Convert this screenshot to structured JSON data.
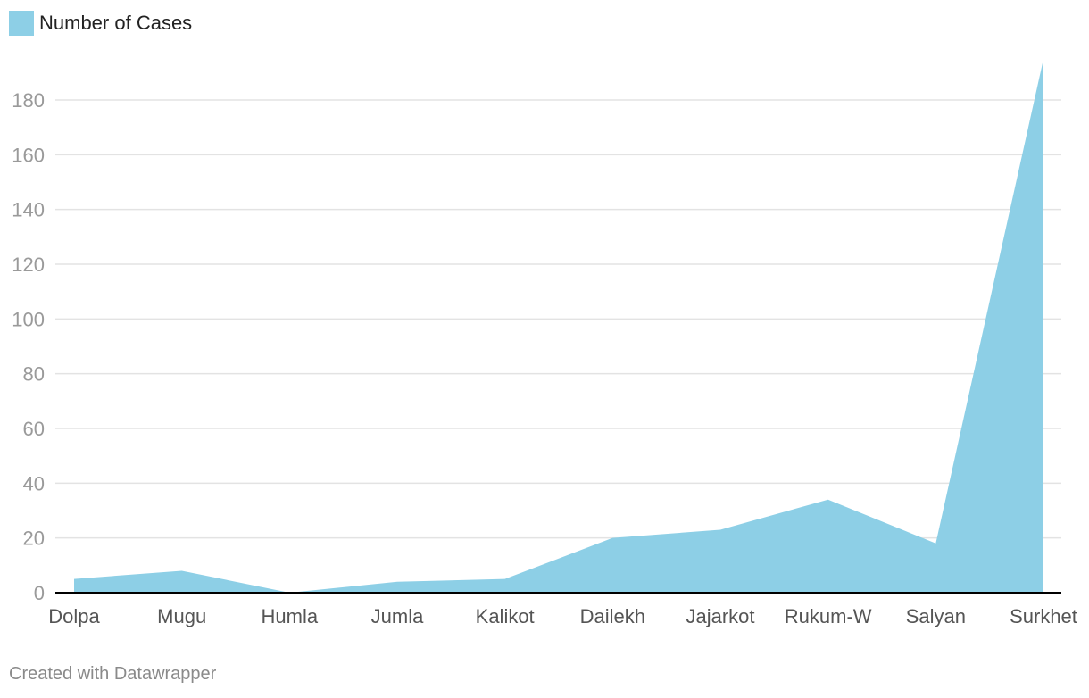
{
  "chart_data": {
    "type": "area",
    "categories": [
      "Dolpa",
      "Mugu",
      "Humla",
      "Jumla",
      "Kalikot",
      "Dailekh",
      "Jajarkot",
      "Rukum-W",
      "Salyan",
      "Surkhet"
    ],
    "series": [
      {
        "name": "Number of Cases",
        "values": [
          5,
          8,
          0,
          4,
          5,
          20,
          23,
          34,
          18,
          195
        ]
      }
    ],
    "yticks": [
      0,
      20,
      40,
      60,
      80,
      100,
      120,
      140,
      160,
      180
    ],
    "ylim": [
      0,
      195
    ],
    "grid": true,
    "legend_position": "top-left",
    "colors": {
      "area": "#8dcfe6",
      "gridline": "#e3e3e3",
      "baseline": "#000000"
    }
  },
  "footer": "Created with Datawrapper"
}
